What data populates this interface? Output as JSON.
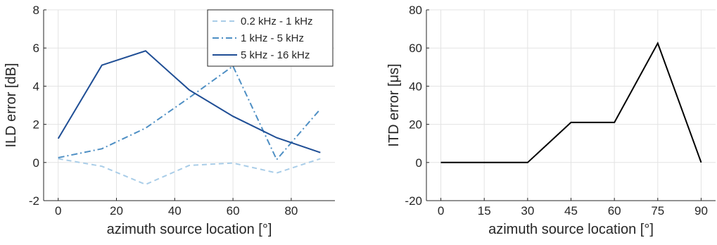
{
  "chart_data": [
    {
      "type": "line",
      "x": [
        0,
        15,
        30,
        45,
        60,
        75,
        90
      ],
      "series": [
        {
          "name": "0.2 kHz - 1 kHz",
          "values": [
            0.2,
            -0.2,
            -1.15,
            -0.15,
            -0.03,
            -0.55,
            0.2
          ],
          "color": "#a9cde8",
          "dash": "dashed"
        },
        {
          "name": "1 kHz - 5 kHz",
          "values": [
            0.25,
            0.72,
            1.8,
            3.4,
            5.05,
            0.15,
            2.8
          ],
          "color": "#4e8fc4",
          "dash": "dashdot"
        },
        {
          "name": "5 kHz - 16 kHz",
          "values": [
            1.25,
            5.1,
            5.85,
            3.8,
            2.42,
            1.3,
            0.52
          ],
          "color": "#1f4e95",
          "dash": "solid"
        }
      ],
      "xlabel": "azimuth source location [°]",
      "ylabel": "ILD error [dB]",
      "xlim": [
        -5,
        95
      ],
      "ylim": [
        -2,
        8
      ],
      "xticks": [
        0,
        20,
        40,
        60,
        80
      ],
      "yticks": [
        -2,
        0,
        2,
        4,
        6,
        8
      ],
      "grid": true,
      "legend": "top-right"
    },
    {
      "type": "line",
      "x": [
        0,
        15,
        30,
        45,
        60,
        75,
        90
      ],
      "series": [
        {
          "values": [
            0,
            0,
            0,
            21,
            21,
            62.5,
            0
          ],
          "color": "#000000",
          "dash": "solid"
        }
      ],
      "xlabel": "azimuth source location [°]",
      "ylabel": "ITD error [μs]",
      "xlim": [
        -5,
        95
      ],
      "ylim": [
        -20,
        80
      ],
      "xticks": [
        0,
        15,
        30,
        45,
        60,
        75,
        90
      ],
      "yticks": [
        -20,
        0,
        20,
        40,
        60,
        80
      ],
      "grid": true,
      "legend": "none"
    }
  ]
}
